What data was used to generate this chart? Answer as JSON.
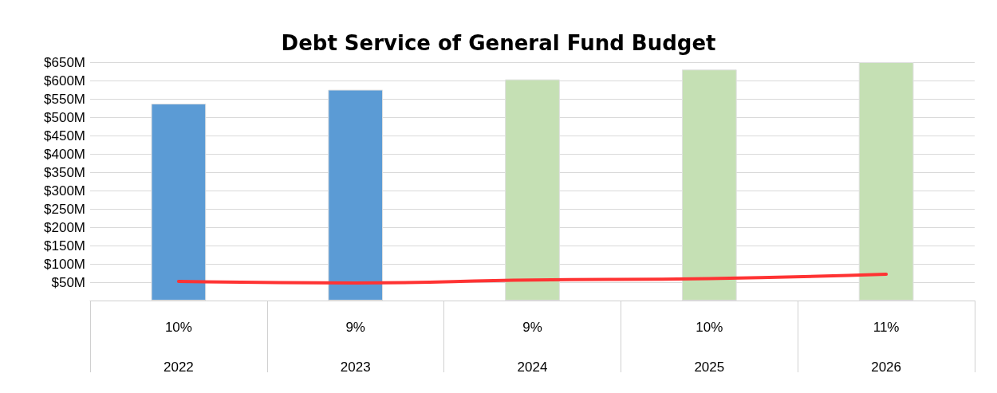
{
  "chart_data": {
    "type": "bar",
    "title": "Debt Service of General Fund Budget",
    "categories": [
      "10%\n2022",
      "9%\n2023",
      "9%\n2024",
      "10%\n2025",
      "11%\n2026"
    ],
    "series": [
      {
        "colors": [
          "#5b9bd5",
          "#5b9bd5",
          "#c5e0b4",
          "#c5e0b4",
          "#c5e0b4"
        ],
        "values": [
          537,
          575,
          603,
          630,
          650
        ]
      },
      {
        "type": "line",
        "color": "#ff3333",
        "values": [
          52,
          48,
          56,
          60,
          72
        ]
      }
    ],
    "ylim": [
      0,
      650
    ],
    "yticks": [
      {
        "value": 0,
        "label": null
      },
      {
        "value": 50,
        "label": "$50M"
      },
      {
        "value": 100,
        "label": "$100M"
      },
      {
        "value": 150,
        "label": "$150M"
      },
      {
        "value": 200,
        "label": "$200M"
      },
      {
        "value": 250,
        "label": "$250M"
      },
      {
        "value": 300,
        "label": "$300M"
      },
      {
        "value": 350,
        "label": "$350M"
      },
      {
        "value": 400,
        "label": "$400M"
      },
      {
        "value": 450,
        "label": "$450M"
      },
      {
        "value": 500,
        "label": "$500M"
      },
      {
        "value": 550,
        "label": "$550M"
      },
      {
        "value": 600,
        "label": "$600M"
      },
      {
        "value": 650,
        "label": "$650M"
      }
    ],
    "grid": "y",
    "marker": "none",
    "line_style": "solid"
  }
}
